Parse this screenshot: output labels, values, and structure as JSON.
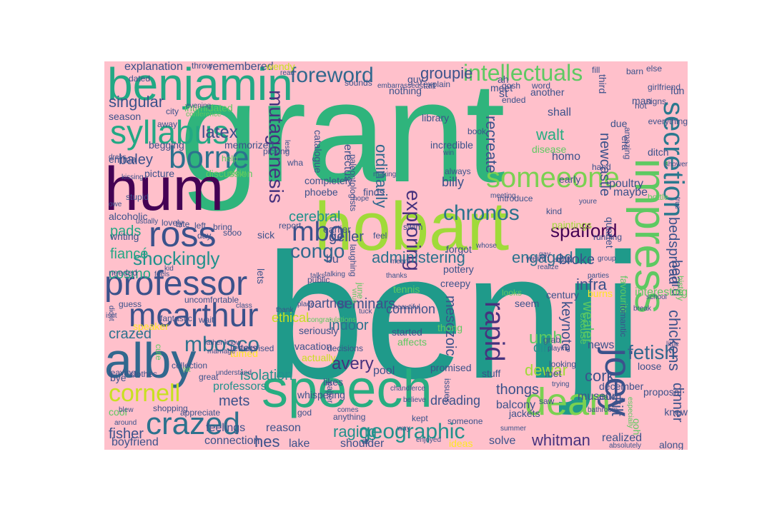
{
  "colors": {
    "background": "#ffc0cb",
    "canvas": "#ffffff",
    "palette": [
      "#440154",
      "#3b528b",
      "#21918c",
      "#27ad81",
      "#5ec962",
      "#a0da39",
      "#fde725"
    ]
  },
  "words": [
    {
      "text": "grant",
      "color": "#2fb47c"
    },
    {
      "text": "benji",
      "color": "#1f9a8a"
    },
    {
      "text": "hobart",
      "color": "#a0da39"
    },
    {
      "text": "speech",
      "color": "#27ad81"
    },
    {
      "text": "hum",
      "color": "#440154"
    },
    {
      "text": "benjamin",
      "color": "#22a884"
    },
    {
      "text": "alby",
      "color": "#31688e"
    },
    {
      "text": "professor",
      "color": "#3b528b"
    },
    {
      "text": "ross",
      "color": "#3b528b"
    },
    {
      "text": "impress",
      "color": "#5ec962"
    },
    {
      "text": "joey",
      "color": "#3b528b"
    },
    {
      "text": "dean",
      "color": "#7ad151"
    },
    {
      "text": "someeone",
      "color": "#7ad151"
    },
    {
      "text": "syllabus",
      "color": "#22a884"
    },
    {
      "text": "borne",
      "color": "#2c728e"
    },
    {
      "text": "mcarthur",
      "color": "#3b528b"
    },
    {
      "text": "crazed",
      "color": "#2c728e"
    },
    {
      "text": "foreword",
      "color": "#31688e"
    },
    {
      "text": "intellectuals",
      "color": "#5ec962"
    },
    {
      "text": "secretion",
      "color": "#2a788e"
    },
    {
      "text": "mutagenesis",
      "color": "#46327e"
    },
    {
      "text": "mbo",
      "color": "#3b528b"
    },
    {
      "text": "chronos",
      "color": "#2c728e"
    },
    {
      "text": "geographic",
      "color": "#21918c"
    },
    {
      "text": "spafford",
      "color": "#440154"
    },
    {
      "text": "rapid",
      "color": "#46327e"
    },
    {
      "text": "cornell",
      "color": "#c8e020"
    },
    {
      "text": "shockingly",
      "color": "#21918c"
    },
    {
      "text": "mbosco",
      "color": "#2c728e"
    },
    {
      "text": "congo",
      "color": "#31688e"
    },
    {
      "text": "exploring",
      "color": "#46327e"
    },
    {
      "text": "fetish",
      "color": "#31688e"
    },
    {
      "text": "latex",
      "color": "#3b528b"
    },
    {
      "text": "singular",
      "color": "#3b528b"
    },
    {
      "text": "groupie",
      "color": "#3b528b"
    },
    {
      "text": "administering",
      "color": "#2c728e"
    },
    {
      "text": "engaged",
      "color": "#2c728e"
    },
    {
      "text": "avery",
      "color": "#46327e"
    },
    {
      "text": "raging",
      "color": "#21918c"
    },
    {
      "text": "whitman",
      "color": "#46327e"
    },
    {
      "text": "isolation",
      "color": "#21918c"
    },
    {
      "text": "dewar",
      "color": "#a0da39"
    },
    {
      "text": "thongs",
      "color": "#3b528b"
    },
    {
      "text": "cork",
      "color": "#3b528b"
    },
    {
      "text": "walt",
      "color": "#27ad81"
    },
    {
      "text": "baley",
      "color": "#3b528b"
    },
    {
      "text": "pads",
      "color": "#22a884"
    },
    {
      "text": "fiancé",
      "color": "#22a884"
    },
    {
      "text": "cosmo",
      "color": "#22a884"
    },
    {
      "text": "hes",
      "color": "#3b528b"
    },
    {
      "text": "crazed",
      "color": "#2c728e"
    },
    {
      "text": "mets",
      "color": "#3b528b"
    },
    {
      "text": "fisher",
      "color": "#3b528b"
    },
    {
      "text": "umh",
      "color": "#5ec962"
    },
    {
      "text": "kilt",
      "color": "#3b528b"
    },
    {
      "text": "infra",
      "color": "#3b528b"
    },
    {
      "text": "broke",
      "color": "#3b528b"
    },
    {
      "text": "dinner",
      "color": "#3b528b"
    },
    {
      "text": "chickens",
      "color": "#3b528b"
    },
    {
      "text": "heard",
      "color": "#3b528b"
    },
    {
      "text": "bedspread",
      "color": "#3b528b"
    },
    {
      "text": "newcastle",
      "color": "#3b528b"
    },
    {
      "text": "recreate",
      "color": "#3b528b"
    },
    {
      "text": "ordinarily",
      "color": "#31688e"
    },
    {
      "text": "seminars",
      "color": "#3b528b"
    },
    {
      "text": "indoor",
      "color": "#2c728e"
    },
    {
      "text": "wealer",
      "color": "#5ec962"
    },
    {
      "text": "keynote",
      "color": "#3b528b"
    },
    {
      "text": "mesozoic",
      "color": "#3b528b"
    },
    {
      "text": "cerebral",
      "color": "#21918c"
    },
    {
      "text": "geller",
      "color": "#3b528b"
    },
    {
      "text": "bu",
      "color": "#3b528b"
    },
    {
      "text": "pool",
      "color": "#3b528b"
    },
    {
      "text": "professors",
      "color": "#21918c"
    },
    {
      "text": "boyfriend",
      "color": "#3b528b"
    },
    {
      "text": "connection",
      "color": "#3b528b"
    },
    {
      "text": "feelings",
      "color": "#3b528b"
    },
    {
      "text": "reason",
      "color": "#3b528b"
    },
    {
      "text": "dreading",
      "color": "#3b528b"
    },
    {
      "text": "solve",
      "color": "#3b528b"
    },
    {
      "text": "realized",
      "color": "#3b528b"
    },
    {
      "text": "museum",
      "color": "#3b528b"
    },
    {
      "text": "lake",
      "color": "#3b528b"
    },
    {
      "text": "shoulder",
      "color": "#3b528b"
    },
    {
      "text": "dr",
      "color": "#3b528b"
    },
    {
      "text": "partner",
      "color": "#3b528b"
    },
    {
      "text": "seriously",
      "color": "#3b528b"
    },
    {
      "text": "vacation",
      "color": "#3b528b"
    },
    {
      "text": "writing",
      "color": "#3b528b"
    },
    {
      "text": "explanation",
      "color": "#3b528b"
    },
    {
      "text": "remembered",
      "color": "#3b528b"
    },
    {
      "text": "common",
      "color": "#3b528b"
    },
    {
      "text": "dirt",
      "color": "#21918c"
    },
    {
      "text": "quartet",
      "color": "#3b528b"
    },
    {
      "text": "poultry",
      "color": "#3b528b"
    },
    {
      "text": "maybe",
      "color": "#3b528b"
    },
    {
      "text": "shall",
      "color": "#3b528b"
    },
    {
      "text": "st",
      "color": "#3b528b"
    },
    {
      "text": "homo",
      "color": "#3b528b"
    },
    {
      "text": "erectus",
      "color": "#3b528b"
    },
    {
      "text": "catalogue",
      "color": "#3b528b"
    },
    {
      "text": "completely",
      "color": "#3b528b"
    },
    {
      "text": "phoebe",
      "color": "#3b528b"
    },
    {
      "text": "loose",
      "color": "#3b528b"
    },
    {
      "text": "december",
      "color": "#3b528b"
    },
    {
      "text": "century",
      "color": "#3b528b"
    },
    {
      "text": "balcony",
      "color": "#3b528b"
    },
    {
      "text": "jackets",
      "color": "#3b528b"
    },
    {
      "text": "billy",
      "color": "#3b528b"
    },
    {
      "text": "ethical",
      "color": "#c8e020"
    },
    {
      "text": "burns",
      "color": "#fde725"
    },
    {
      "text": "paintings",
      "color": "#a0da39"
    },
    {
      "text": "actually",
      "color": "#c8e020"
    },
    {
      "text": "tumed",
      "color": "#fde725"
    },
    {
      "text": "speaker",
      "color": "#fde725"
    },
    {
      "text": "intimidated",
      "color": "#5ec962"
    },
    {
      "text": "wendy",
      "color": "#c8e020"
    },
    {
      "text": "season",
      "color": "#3b528b"
    },
    {
      "text": "begging",
      "color": "#3b528b"
    },
    {
      "text": "memorized",
      "color": "#3b528b"
    },
    {
      "text": "emma",
      "color": "#3b528b"
    },
    {
      "text": "picture",
      "color": "#3b528b"
    },
    {
      "text": "discussion",
      "color": "#5ec962"
    },
    {
      "text": "slow",
      "color": "#5ec962"
    },
    {
      "text": "letters",
      "color": "#3b528b"
    },
    {
      "text": "lets",
      "color": "#3b528b"
    },
    {
      "text": "alcoholic",
      "color": "#3b528b"
    },
    {
      "text": "wait",
      "color": "#3b528b"
    },
    {
      "text": "fantastic",
      "color": "#3b528b"
    },
    {
      "text": "needed",
      "color": "#3b528b"
    },
    {
      "text": "uncomfortable",
      "color": "#3b528b"
    },
    {
      "text": "surprised",
      "color": "#3b528b"
    },
    {
      "text": "news",
      "color": "#3b528b"
    },
    {
      "text": "excuse",
      "color": "#5ec962"
    },
    {
      "text": "favourite",
      "color": "#5ec962"
    },
    {
      "text": "romantic",
      "color": "#3b528b"
    },
    {
      "text": "history",
      "color": "#5ec962"
    },
    {
      "text": "interesting",
      "color": "#5ec962"
    },
    {
      "text": "ooh",
      "color": "#5ec962"
    },
    {
      "text": "proposal",
      "color": "#3b528b"
    },
    {
      "text": "along",
      "color": "#3b528b"
    },
    {
      "text": "ideas",
      "color": "#fde725"
    },
    {
      "text": "promised",
      "color": "#3b528b"
    },
    {
      "text": "stuff",
      "color": "#3b528b"
    },
    {
      "text": "likes",
      "color": "#3b528b"
    },
    {
      "text": "decisions",
      "color": "#3b528b"
    },
    {
      "text": "started",
      "color": "#3b528b"
    },
    {
      "text": "affects",
      "color": "#5ec962"
    },
    {
      "text": "thong",
      "color": "#5ec962"
    },
    {
      "text": "creepy",
      "color": "#3b528b"
    },
    {
      "text": "pottery",
      "color": "#3b528b"
    },
    {
      "text": "looks",
      "color": "#5ec962"
    },
    {
      "text": "seem",
      "color": "#3b528b"
    },
    {
      "text": "feel",
      "color": "#3b528b"
    },
    {
      "text": "forgot",
      "color": "#3b528b"
    },
    {
      "text": "weird",
      "color": "#3b528b"
    },
    {
      "text": "swim",
      "color": "#3b528b"
    },
    {
      "text": "kind",
      "color": "#3b528b"
    },
    {
      "text": "introduce",
      "color": "#3b528b"
    },
    {
      "text": "disease",
      "color": "#5ec962"
    },
    {
      "text": "library",
      "color": "#3b528b"
    },
    {
      "text": "incredible",
      "color": "#3b528b"
    },
    {
      "text": "nothing",
      "color": "#3b528b"
    },
    {
      "text": "guy",
      "color": "#3b528b"
    },
    {
      "text": "another",
      "color": "#3b528b"
    },
    {
      "text": "dated",
      "color": "#3b528b"
    },
    {
      "text": "embarrassed",
      "color": "#3b528b"
    },
    {
      "text": "explain",
      "color": "#3b528b"
    },
    {
      "text": "early",
      "color": "#3b528b"
    },
    {
      "text": "man",
      "color": "#3b528b"
    },
    {
      "text": "signs",
      "color": "#3b528b"
    },
    {
      "text": "fun",
      "color": "#3b528b"
    },
    {
      "text": "due",
      "color": "#3b528b"
    },
    {
      "text": "era",
      "color": "#3b528b"
    },
    {
      "text": "ditch",
      "color": "#3b528b"
    },
    {
      "text": "else",
      "color": "#3b528b"
    },
    {
      "text": "everything",
      "color": "#3b528b"
    },
    {
      "text": "earlier",
      "color": "#3b528b"
    },
    {
      "text": "sick",
      "color": "#3b528b"
    },
    {
      "text": "report",
      "color": "#3b528b"
    },
    {
      "text": "finds",
      "color": "#3b528b"
    },
    {
      "text": "june",
      "color": "#5ec962"
    },
    {
      "text": "tennis",
      "color": "#5ec962"
    },
    {
      "text": "public",
      "color": "#3b528b"
    },
    {
      "text": "laughing",
      "color": "#3b528b"
    },
    {
      "text": "paleontologists",
      "color": "#3b528b"
    },
    {
      "text": "talks",
      "color": "#3b528b"
    },
    {
      "text": "talking",
      "color": "#3b528b"
    },
    {
      "text": "thanks",
      "color": "#3b528b"
    },
    {
      "text": "meant",
      "color": "#3b528b"
    },
    {
      "text": "realize",
      "color": "#3b528b"
    },
    {
      "text": "parties",
      "color": "#3b528b"
    },
    {
      "text": "running",
      "color": "#3b528b"
    },
    {
      "text": "group",
      "color": "#3b528b"
    },
    {
      "text": "playing",
      "color": "#3b528b"
    },
    {
      "text": "looking",
      "color": "#3b528b"
    },
    {
      "text": "grab",
      "color": "#3b528b"
    },
    {
      "text": "met",
      "color": "#3b528b"
    },
    {
      "text": "saw",
      "color": "#3b528b"
    },
    {
      "text": "someone",
      "color": "#3b528b"
    },
    {
      "text": "issues",
      "color": "#3b528b"
    },
    {
      "text": "enjoyed",
      "color": "#3b528b"
    },
    {
      "text": "paper",
      "color": "#3b528b"
    },
    {
      "text": "god",
      "color": "#3b528b"
    },
    {
      "text": "anything",
      "color": "#3b528b"
    },
    {
      "text": "comes",
      "color": "#3b528b"
    },
    {
      "text": "way",
      "color": "#3b528b"
    },
    {
      "text": "chandlerce",
      "color": "#3b528b"
    },
    {
      "text": "believe",
      "color": "#3b528b"
    },
    {
      "text": "bye",
      "color": "#3b528b"
    },
    {
      "text": "cool",
      "color": "#5ec962"
    },
    {
      "text": "clothes",
      "color": "#3b528b"
    },
    {
      "text": "shopping",
      "color": "#3b528b"
    },
    {
      "text": "appreciate",
      "color": "#3b528b"
    },
    {
      "text": "blew",
      "color": "#3b528b"
    },
    {
      "text": "around",
      "color": "#3b528b"
    },
    {
      "text": "leaving",
      "color": "#3b528b"
    },
    {
      "text": "cute",
      "color": "#5ec962"
    },
    {
      "text": "collection",
      "color": "#3b528b"
    },
    {
      "text": "great",
      "color": "#3b528b"
    },
    {
      "text": "hit",
      "color": "#5ec962"
    },
    {
      "text": "understand",
      "color": "#3b528b"
    },
    {
      "text": "father",
      "color": "#3b528b"
    },
    {
      "text": "know",
      "color": "#3b528b"
    },
    {
      "text": "marriage",
      "color": "#3b528b"
    },
    {
      "text": "guess",
      "color": "#3b528b"
    },
    {
      "text": "congratulations",
      "color": "#5ec962"
    },
    {
      "text": "beautiful",
      "color": "#3b528b"
    },
    {
      "text": "bring",
      "color": "#3b528b"
    },
    {
      "text": "sooo",
      "color": "#3b528b"
    },
    {
      "text": "left",
      "color": "#3b528b"
    },
    {
      "text": "day",
      "color": "#3b528b"
    },
    {
      "text": "lovely",
      "color": "#3b528b"
    },
    {
      "text": "bite",
      "color": "#3b528b"
    },
    {
      "text": "usually",
      "color": "#3b528b"
    },
    {
      "text": "stupid",
      "color": "#3b528b"
    },
    {
      "text": "owe",
      "color": "#3b528b"
    },
    {
      "text": "kissing",
      "color": "#3b528b"
    },
    {
      "text": "dress",
      "color": "#3b528b"
    },
    {
      "text": "away",
      "color": "#3b528b"
    },
    {
      "text": "evening",
      "color": "#3b528b"
    },
    {
      "text": "city",
      "color": "#3b528b"
    },
    {
      "text": "help",
      "color": "#5ec962"
    },
    {
      "text": "picking",
      "color": "#3b528b"
    },
    {
      "text": "wha",
      "color": "#3b528b"
    },
    {
      "text": "less",
      "color": "#3b528b"
    },
    {
      "text": "throw",
      "color": "#3b528b"
    },
    {
      "text": "read",
      "color": "#3b528b"
    },
    {
      "text": "thank",
      "color": "#3b528b"
    },
    {
      "text": "meeting",
      "color": "#3b528b"
    },
    {
      "text": "hope",
      "color": "#3b528b"
    },
    {
      "text": "making",
      "color": "#3b528b"
    },
    {
      "text": "always",
      "color": "#3b528b"
    },
    {
      "text": "win",
      "color": "#3b528b"
    },
    {
      "text": "book",
      "color": "#3b528b"
    },
    {
      "text": "ah",
      "color": "#3b528b"
    },
    {
      "text": "gosh",
      "color": "#3b528b"
    },
    {
      "text": "meet",
      "color": "#3b528b"
    },
    {
      "text": "word",
      "color": "#3b528b"
    },
    {
      "text": "ended",
      "color": "#3b528b"
    },
    {
      "text": "fill",
      "color": "#3b528b"
    },
    {
      "text": "third",
      "color": "#3b528b"
    },
    {
      "text": "barn",
      "color": "#3b528b"
    },
    {
      "text": "hot",
      "color": "#3b528b"
    },
    {
      "text": "hand",
      "color": "#3b528b"
    },
    {
      "text": "amazing",
      "color": "#3b528b"
    },
    {
      "text": "bottle",
      "color": "#5ec962"
    },
    {
      "text": "gay",
      "color": "#3b528b"
    },
    {
      "text": "alright",
      "color": "#3b528b"
    },
    {
      "text": "whose",
      "color": "#3b528b"
    },
    {
      "text": "youre",
      "color": "#3b528b"
    },
    {
      "text": "break",
      "color": "#3b528b"
    },
    {
      "text": "school",
      "color": "#3b528b"
    },
    {
      "text": "little",
      "color": "#3b528b"
    },
    {
      "text": "knew",
      "color": "#3b528b"
    },
    {
      "text": "especially",
      "color": "#5ec962"
    },
    {
      "text": "absolutely",
      "color": "#3b528b"
    },
    {
      "text": "bathroom",
      "color": "#3b528b"
    },
    {
      "text": "trying",
      "color": "#3b528b"
    },
    {
      "text": "date",
      "color": "#3b528b"
    },
    {
      "text": "summer",
      "color": "#3b528b"
    },
    {
      "text": "kept",
      "color": "#3b528b"
    },
    {
      "text": "whispering",
      "color": "#3b528b"
    },
    {
      "text": "virus",
      "color": "#5ec962"
    },
    {
      "text": "tuck",
      "color": "#3b528b"
    },
    {
      "text": "feels",
      "color": "#3b528b"
    },
    {
      "text": "kid",
      "color": "#3b528b"
    },
    {
      "text": "isnt",
      "color": "#3b528b"
    },
    {
      "text": "didnt",
      "color": "#3b528b"
    },
    {
      "text": "class",
      "color": "#3b528b"
    },
    {
      "text": "place",
      "color": "#3b528b"
    },
    {
      "text": "start",
      "color": "#3b528b"
    },
    {
      "text": "sounds",
      "color": "#3b528b"
    },
    {
      "text": "conference",
      "color": "#5ec962"
    },
    {
      "text": "girlfriend",
      "color": "#3b528b"
    },
    {
      "text": "shower",
      "color": "#3b528b"
    },
    {
      "text": "true",
      "color": "#3b528b"
    },
    {
      "text": "afternoon",
      "color": "#3b528b"
    }
  ]
}
